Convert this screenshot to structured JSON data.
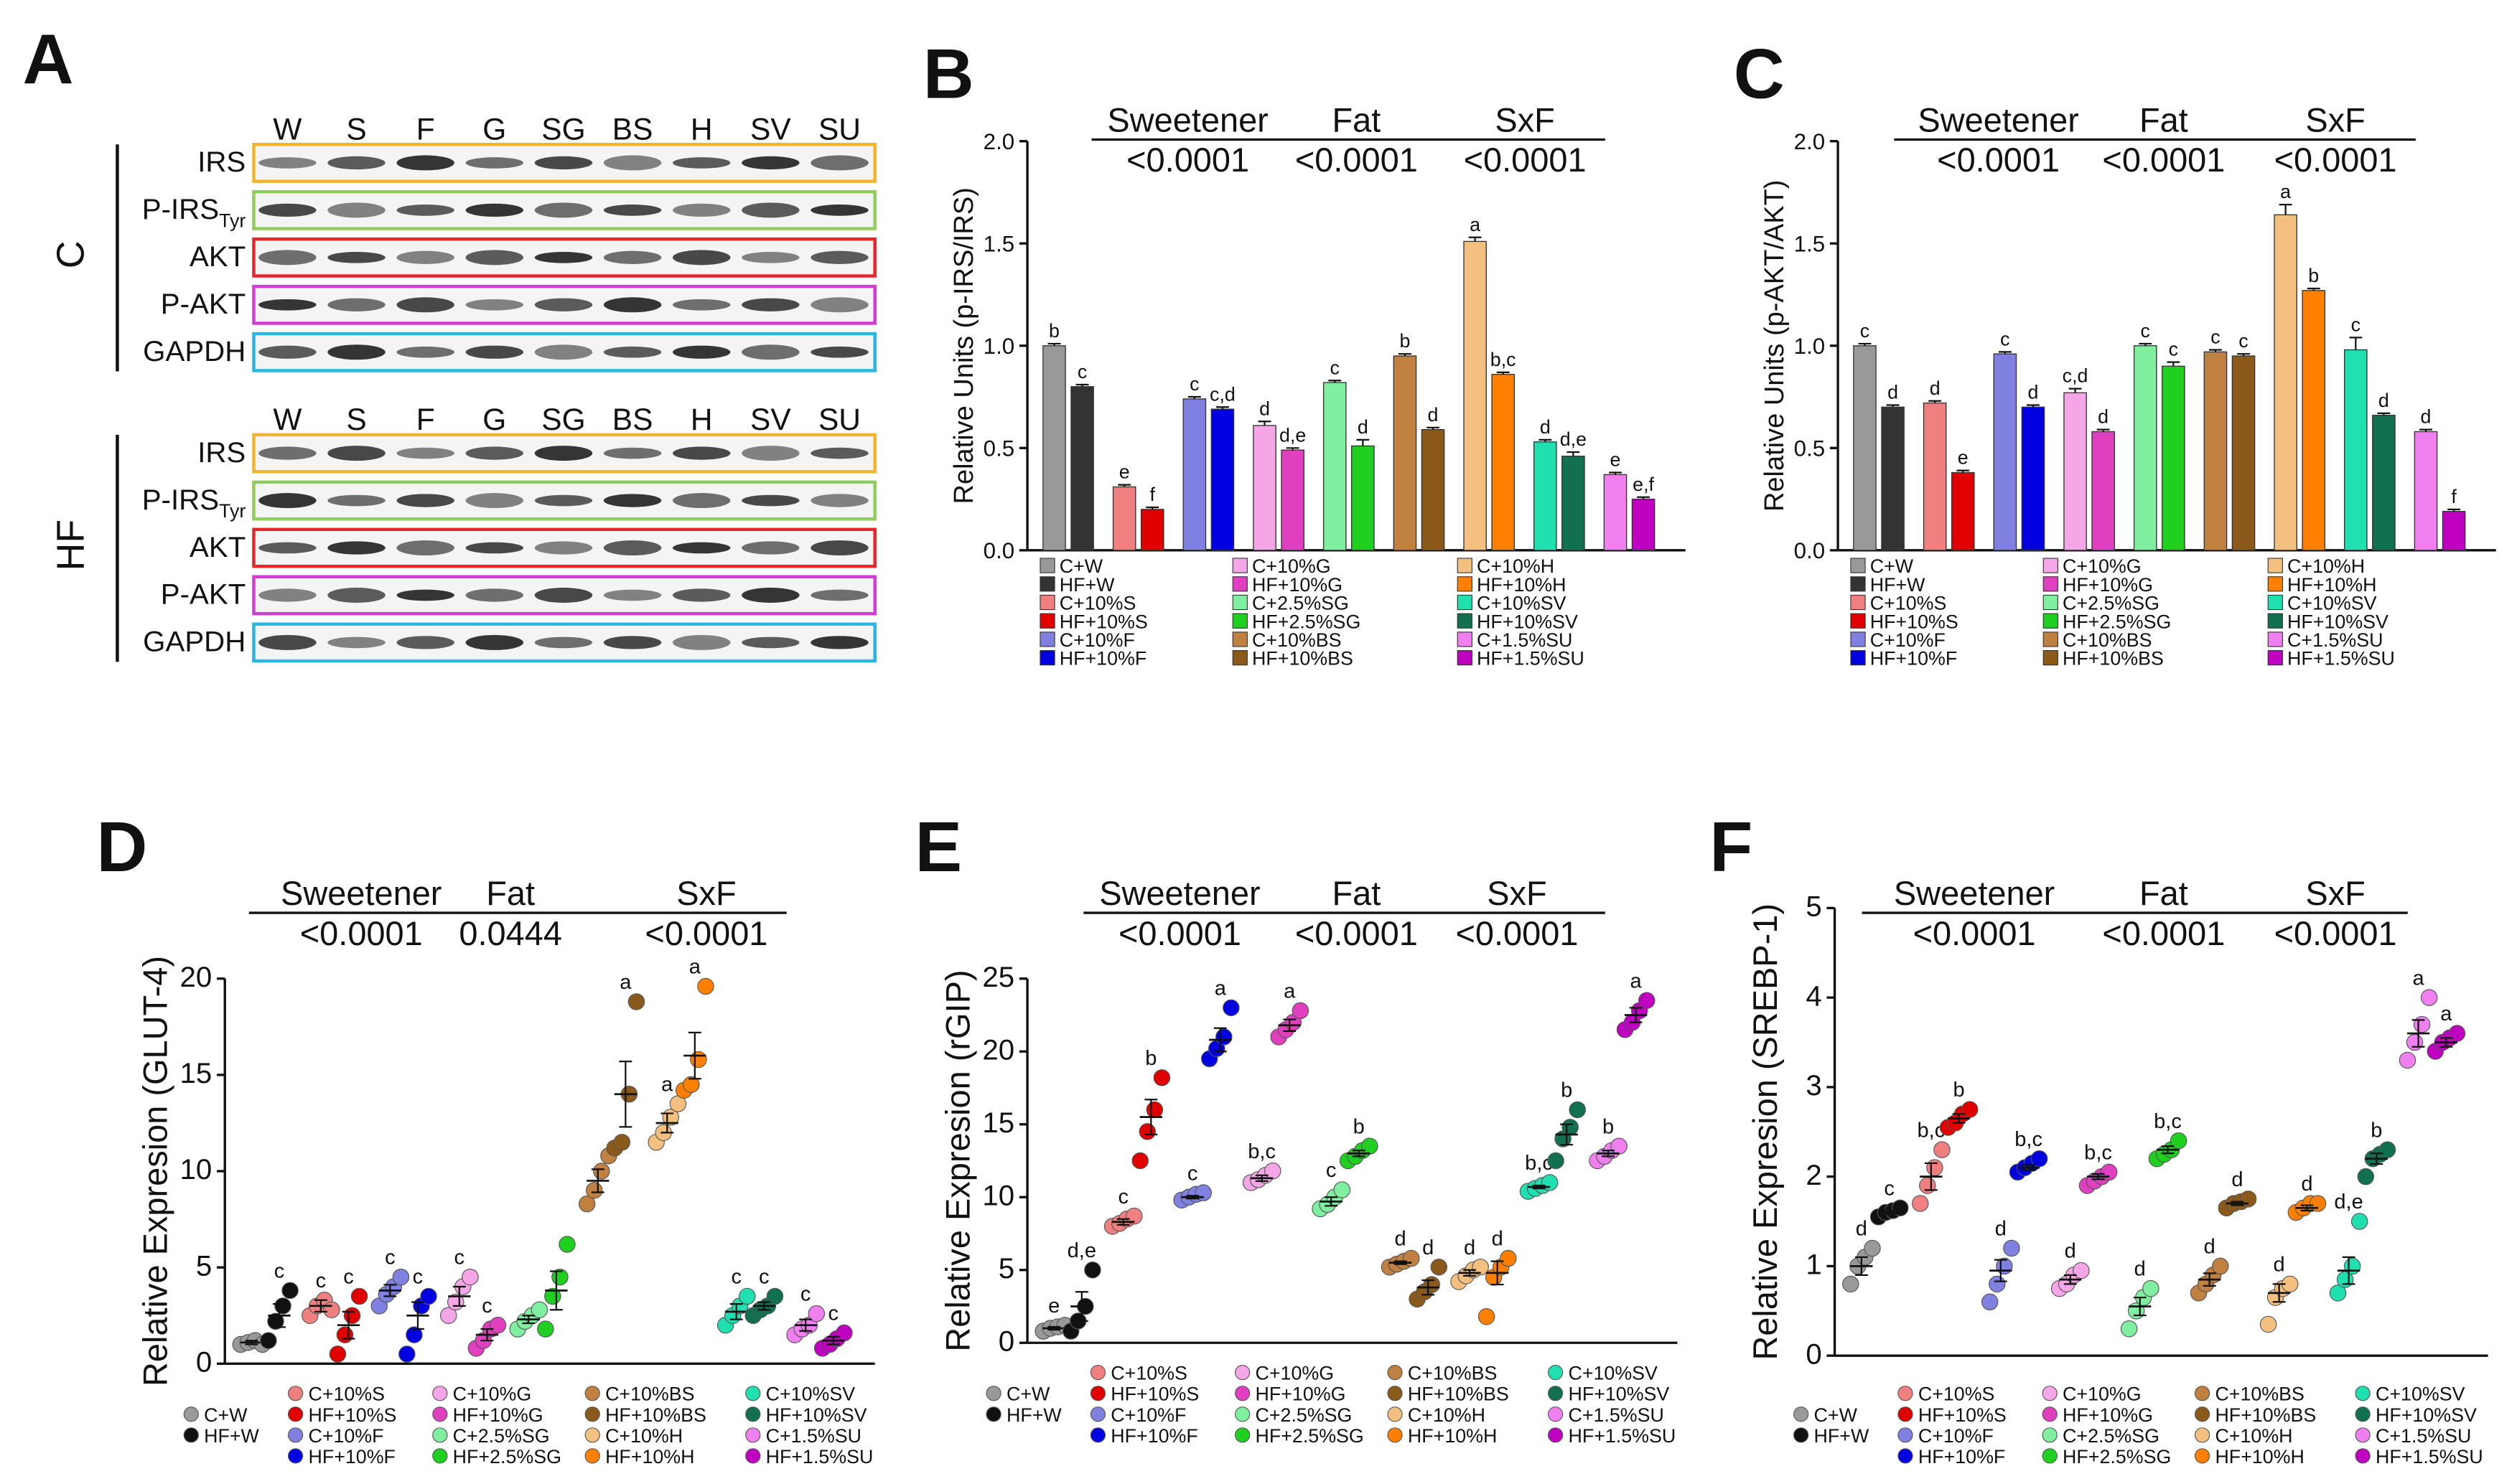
{
  "blot": {
    "panel": "A",
    "lanes": [
      "W",
      "S",
      "F",
      "G",
      "SG",
      "BS",
      "H",
      "SV",
      "SU"
    ],
    "groups": [
      "C",
      "HF"
    ],
    "rows": [
      {
        "label": "IRS",
        "color": "#f5b32a"
      },
      {
        "label": "P-IRS",
        "subscript": "Tyr",
        "color": "#8fce5c"
      },
      {
        "label": "AKT",
        "color": "#e8262a"
      },
      {
        "label": "P-AKT",
        "color": "#d63ad6"
      },
      {
        "label": "GAPDH",
        "color": "#29b6e6"
      }
    ]
  },
  "chart_data": [
    {
      "panel": "B",
      "type": "bar",
      "ylabel": "Relative Units (p-IRS/IRS)",
      "factors": [
        "Sweetener",
        "Fat",
        "SxF"
      ],
      "p_values": [
        "<0.0001",
        "<0.0001",
        "<0.0001"
      ],
      "categories": [
        "C+W",
        "HF+W",
        "C+10%S",
        "HF+10%S",
        "C+10%F",
        "HF+10%F",
        "C+10%G",
        "HF+10%G",
        "C+2.5%SG",
        "HF+2.5%SG",
        "C+10%BS",
        "HF+10%BS",
        "C+10%H",
        "HF+10%H",
        "C+10%SV",
        "HF+10%SV",
        "C+1.5%SU",
        "HF+1.5%SU"
      ],
      "colors": [
        "#999999",
        "#333333",
        "#f08080",
        "#e00000",
        "#8080e0",
        "#0000e0",
        "#f4a6e6",
        "#e040c0",
        "#80f0a0",
        "#20d020",
        "#c08040",
        "#8b5a1b",
        "#f4c080",
        "#ff8000",
        "#20e0b0",
        "#107050",
        "#f080f0",
        "#c000c0"
      ],
      "values": [
        1.0,
        0.8,
        0.31,
        0.2,
        0.74,
        0.69,
        0.61,
        0.49,
        0.82,
        0.51,
        0.95,
        0.59,
        1.51,
        0.86,
        0.53,
        0.46,
        0.37,
        0.25
      ],
      "errors": [
        0.01,
        0.01,
        0.01,
        0.01,
        0.01,
        0.01,
        0.02,
        0.01,
        0.01,
        0.03,
        0.01,
        0.01,
        0.02,
        0.01,
        0.01,
        0.02,
        0.01,
        0.01
      ],
      "letters": [
        "b",
        "c",
        "e",
        "f",
        "c",
        "c,d",
        "d",
        "d,e",
        "c",
        "d",
        "b",
        "d",
        "a",
        "b,c",
        "d",
        "d,e",
        "e",
        "e,f"
      ],
      "ylim": [
        0,
        2
      ],
      "yticks": [
        {
          "value": 0,
          "label": "0.0"
        },
        {
          "value": 0.5,
          "label": "0.5"
        },
        {
          "value": 1,
          "label": "1.0"
        },
        {
          "value": 1.5,
          "label": "1.5"
        },
        {
          "value": 2,
          "label": "2.0"
        }
      ]
    },
    {
      "panel": "C",
      "type": "bar",
      "ylabel": "Relative Units (p-AKT/AKT)",
      "factors": [
        "Sweetener",
        "Fat",
        "SxF"
      ],
      "p_values": [
        "<0.0001",
        "<0.0001",
        "<0.0001"
      ],
      "categories": [
        "C+W",
        "HF+W",
        "C+10%S",
        "HF+10%S",
        "C+10%F",
        "HF+10%F",
        "C+10%G",
        "HF+10%G",
        "C+2.5%SG",
        "HF+2.5%SG",
        "C+10%BS",
        "HF+10%BS",
        "C+10%H",
        "HF+10%H",
        "C+10%SV",
        "HF+10%SV",
        "C+1.5%SU",
        "HF+1.5%SU"
      ],
      "colors": [
        "#999999",
        "#333333",
        "#f08080",
        "#e00000",
        "#8080e0",
        "#0000e0",
        "#f4a6e6",
        "#e040c0",
        "#80f0a0",
        "#20d020",
        "#c08040",
        "#8b5a1b",
        "#f4c080",
        "#ff8000",
        "#20e0b0",
        "#107050",
        "#f080f0",
        "#c000c0"
      ],
      "values": [
        1.0,
        0.7,
        0.72,
        0.38,
        0.96,
        0.7,
        0.77,
        0.58,
        1.0,
        0.9,
        0.97,
        0.95,
        1.64,
        1.27,
        0.98,
        0.66,
        0.58,
        0.19
      ],
      "errors": [
        0.01,
        0.01,
        0.01,
        0.01,
        0.01,
        0.01,
        0.02,
        0.01,
        0.01,
        0.02,
        0.01,
        0.01,
        0.05,
        0.01,
        0.06,
        0.01,
        0.01,
        0.01
      ],
      "letters": [
        "c",
        "d",
        "d",
        "e",
        "c",
        "d",
        "c,d",
        "d",
        "c",
        "c",
        "c",
        "c",
        "a",
        "b",
        "c",
        "d",
        "d",
        "f"
      ],
      "ylim": [
        0,
        2
      ],
      "yticks": [
        {
          "value": 0,
          "label": "0.0"
        },
        {
          "value": 0.5,
          "label": "0.5"
        },
        {
          "value": 1,
          "label": "1.0"
        },
        {
          "value": 1.5,
          "label": "1.5"
        },
        {
          "value": 2,
          "label": "2.0"
        }
      ]
    },
    {
      "panel": "D",
      "type": "dot",
      "ylabel": "Relative Expresion (GLUT-4)",
      "factors": [
        "Sweetener",
        "Fat",
        "SxF"
      ],
      "p_values": [
        "<0.0001",
        "0.0444",
        "<0.0001"
      ],
      "categories": [
        "C+W",
        "HF+W",
        "C+10%S",
        "HF+10%S",
        "C+10%F",
        "HF+10%F",
        "C+10%G",
        "HF+10%G",
        "C+2.5%SG",
        "HF+2.5%SG",
        "C+10%BS",
        "HF+10%BS",
        "C+10%H",
        "HF+10%H",
        "C+10%SV",
        "HF+10%SV",
        "C+1.5%SU",
        "HF+1.5%SU"
      ],
      "colors": [
        "#999999",
        "#111111",
        "#f08080",
        "#e00000",
        "#8080e0",
        "#0000e0",
        "#f4a6e6",
        "#e040c0",
        "#80f0a0",
        "#20d020",
        "#c08040",
        "#8b5a1b",
        "#f4c080",
        "#ff8000",
        "#20e0b0",
        "#107050",
        "#f080f0",
        "#c000c0"
      ],
      "values": [
        1.1,
        2.5,
        3.0,
        2.0,
        3.8,
        2.5,
        3.5,
        1.5,
        2.3,
        3.8,
        9.5,
        14.0,
        12.5,
        16.0,
        2.7,
        3.0,
        2.0,
        1.2
      ],
      "errors": [
        0.1,
        0.6,
        0.3,
        0.7,
        0.3,
        0.7,
        0.5,
        0.3,
        0.2,
        1.0,
        0.6,
        1.7,
        0.5,
        1.2,
        0.4,
        0.2,
        0.3,
        0.2
      ],
      "points": [
        [
          1.0,
          1.1,
          1.2,
          1.0
        ],
        [
          1.2,
          2.2,
          3.0,
          3.8
        ],
        [
          2.5,
          3.0,
          3.3,
          2.8
        ],
        [
          0.5,
          1.5,
          2.5,
          3.5
        ],
        [
          3.0,
          3.6,
          4.0,
          4.5
        ],
        [
          0.5,
          1.5,
          3.0,
          3.5
        ],
        [
          2.5,
          3.2,
          4.0,
          4.5
        ],
        [
          0.8,
          1.2,
          1.8,
          2.0
        ],
        [
          1.8,
          2.2,
          2.5,
          2.8
        ],
        [
          1.8,
          3.5,
          4.5,
          6.2
        ],
        [
          8.3,
          9.0,
          10.0,
          10.8
        ],
        [
          11.2,
          11.5,
          14.0,
          18.8
        ],
        [
          11.5,
          12.0,
          12.8,
          13.5
        ],
        [
          14.2,
          14.5,
          15.8,
          19.6
        ],
        [
          2.0,
          2.5,
          3.0,
          3.5
        ],
        [
          2.5,
          2.8,
          3.0,
          3.5
        ],
        [
          1.5,
          1.8,
          2.0,
          2.6
        ],
        [
          0.8,
          1.0,
          1.3,
          1.6
        ]
      ],
      "letters": [
        null,
        "c",
        "c",
        "c",
        "c",
        "c",
        "c",
        "c",
        null,
        null,
        null,
        "a",
        "a",
        "a",
        "c",
        "c",
        "c",
        "c"
      ],
      "ylim": [
        0,
        20
      ],
      "yticks": [
        0,
        5,
        10,
        15,
        20
      ]
    },
    {
      "panel": "E",
      "type": "dot",
      "ylabel": "Relative Expresion (rGIP)",
      "factors": [
        "Sweetener",
        "Fat",
        "SxF"
      ],
      "p_values": [
        "<0.0001",
        "<0.0001",
        "<0.0001"
      ],
      "categories": [
        "C+W",
        "HF+W",
        "C+10%S",
        "HF+10%S",
        "C+10%F",
        "HF+10%F",
        "C+10%G",
        "HF+10%G",
        "C+2.5%SG",
        "HF+2.5%SG",
        "C+10%BS",
        "HF+10%BS",
        "C+10%H",
        "HF+10%H",
        "C+10%SV",
        "HF+10%SV",
        "C+1.5%SU",
        "HF+1.5%SU"
      ],
      "colors": [
        "#999999",
        "#111111",
        "#f08080",
        "#e00000",
        "#8080e0",
        "#0000e0",
        "#f4a6e6",
        "#e040c0",
        "#80f0a0",
        "#20d020",
        "#c08040",
        "#8b5a1b",
        "#f4c080",
        "#ff8000",
        "#20e0b0",
        "#107050",
        "#f080f0",
        "#c000c0"
      ],
      "values": [
        1.0,
        2.5,
        8.3,
        15.5,
        10.0,
        20.8,
        11.3,
        21.8,
        9.7,
        13.0,
        5.5,
        3.8,
        4.8,
        4.8,
        10.7,
        14.3,
        13.0,
        22.5
      ],
      "errors": [
        0.1,
        1.0,
        0.2,
        1.2,
        0.1,
        0.8,
        0.2,
        0.4,
        0.3,
        0.2,
        0.1,
        0.5,
        0.2,
        0.8,
        0.1,
        0.7,
        0.2,
        0.5
      ],
      "points": [
        [
          0.8,
          1.0,
          1.1,
          1.2
        ],
        [
          0.8,
          1.5,
          2.5,
          5.0
        ],
        [
          8.0,
          8.2,
          8.5,
          8.7
        ],
        [
          12.5,
          14.5,
          16.0,
          18.2
        ],
        [
          9.8,
          10.0,
          10.2,
          10.3
        ],
        [
          19.5,
          20.2,
          21.0,
          23.0
        ],
        [
          11.0,
          11.2,
          11.5,
          11.8
        ],
        [
          21.0,
          21.5,
          22.0,
          22.8
        ],
        [
          9.2,
          9.5,
          10.0,
          10.5
        ],
        [
          12.5,
          12.8,
          13.2,
          13.5
        ],
        [
          5.2,
          5.4,
          5.6,
          5.8
        ],
        [
          3.0,
          3.5,
          4.0,
          5.2
        ],
        [
          4.2,
          4.6,
          5.0,
          5.2
        ],
        [
          1.8,
          4.5,
          5.2,
          5.8
        ],
        [
          10.4,
          10.6,
          10.8,
          11.0
        ],
        [
          12.5,
          14.0,
          14.8,
          16.0
        ],
        [
          12.5,
          12.8,
          13.2,
          13.5
        ],
        [
          21.5,
          22.0,
          22.8,
          23.5
        ]
      ],
      "letters": [
        "e",
        "d,e",
        "c",
        "b",
        "c",
        "a",
        "b,c",
        "a",
        "c",
        "b",
        "d",
        "d",
        "d",
        "d",
        "b,c",
        "b",
        "b",
        "a"
      ],
      "ylim": [
        0,
        25
      ],
      "yticks": [
        0,
        5,
        10,
        15,
        20,
        25
      ]
    },
    {
      "panel": "F",
      "type": "dot",
      "ylabel": "Relative Expresion (SREBP-1)",
      "factors": [
        "Sweetener",
        "Fat",
        "SxF"
      ],
      "p_values": [
        "<0.0001",
        "<0.0001",
        "<0.0001"
      ],
      "categories": [
        "C+W",
        "HF+W",
        "C+10%S",
        "HF+10%S",
        "C+10%F",
        "HF+10%F",
        "C+10%G",
        "HF+10%G",
        "C+2.5%SG",
        "HF+2.5%SG",
        "C+10%BS",
        "HF+10%BS",
        "C+10%H",
        "HF+10%H",
        "C+10%SV",
        "HF+10%SV",
        "C+1.5%SU",
        "HF+1.5%SU"
      ],
      "colors": [
        "#999999",
        "#111111",
        "#f08080",
        "#e00000",
        "#8080e0",
        "#0000e0",
        "#f4a6e6",
        "#e040c0",
        "#80f0a0",
        "#20d020",
        "#c08040",
        "#8b5a1b",
        "#f4c080",
        "#ff8000",
        "#20e0b0",
        "#107050",
        "#f080f0",
        "#c000c0"
      ],
      "values": [
        1.0,
        1.6,
        2.0,
        2.65,
        0.95,
        2.1,
        0.85,
        2.0,
        0.55,
        2.3,
        0.85,
        1.7,
        0.7,
        1.65,
        0.95,
        2.2,
        3.6,
        3.5
      ],
      "errors": [
        0.1,
        0.02,
        0.15,
        0.05,
        0.12,
        0.03,
        0.05,
        0.03,
        0.1,
        0.04,
        0.07,
        0.02,
        0.1,
        0.03,
        0.15,
        0.06,
        0.15,
        0.05
      ],
      "points": [
        [
          0.8,
          1.0,
          1.1,
          1.2
        ],
        [
          1.55,
          1.6,
          1.62,
          1.65
        ],
        [
          1.7,
          1.9,
          2.1,
          2.3
        ],
        [
          2.55,
          2.6,
          2.7,
          2.75
        ],
        [
          0.6,
          0.8,
          1.0,
          1.2
        ],
        [
          2.05,
          2.1,
          2.15,
          2.2
        ],
        [
          0.75,
          0.8,
          0.9,
          0.95
        ],
        [
          1.9,
          1.95,
          2.0,
          2.05
        ],
        [
          0.3,
          0.5,
          0.65,
          0.75
        ],
        [
          2.2,
          2.25,
          2.3,
          2.4
        ],
        [
          0.7,
          0.8,
          0.9,
          1.0
        ],
        [
          1.65,
          1.7,
          1.72,
          1.75
        ],
        [
          0.35,
          0.65,
          0.75,
          0.8
        ],
        [
          1.6,
          1.65,
          1.7,
          1.7
        ],
        [
          0.7,
          0.85,
          1.0,
          1.5
        ],
        [
          2.0,
          2.2,
          2.25,
          2.3
        ],
        [
          3.3,
          3.5,
          3.7,
          4.0
        ],
        [
          3.4,
          3.5,
          3.55,
          3.6
        ]
      ],
      "letters": [
        "d",
        "c",
        "b,c",
        "b",
        "d",
        "b,c",
        "d",
        "b,c",
        "d",
        "b,c",
        "d",
        "d",
        "d",
        "d",
        "d,e",
        "b",
        "a",
        "a"
      ],
      "ylim": [
        0,
        5
      ],
      "yticks": [
        0,
        1,
        2,
        3,
        4,
        5
      ]
    }
  ]
}
